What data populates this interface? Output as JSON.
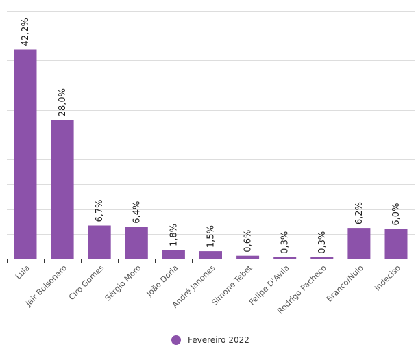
{
  "chart_data": {
    "type": "bar",
    "categories": [
      "Lula",
      "Jair Bolsonaro",
      "Ciro Gomes",
      "Sérgio Moro",
      "João Doria",
      "André Janones",
      "Simone Tebet",
      "Felipe D'Avila",
      "Rodrigo Pacheco",
      "Branco/Nulo",
      "Indeciso"
    ],
    "series": [
      {
        "name": "Fevereiro 2022",
        "values": [
          42.2,
          28.0,
          6.7,
          6.4,
          1.8,
          1.5,
          0.6,
          0.3,
          0.3,
          6.2,
          6.0
        ],
        "labels": [
          "42,2%",
          "28,0%",
          "6,7%",
          "6,4%",
          "1,8%",
          "1,5%",
          "0,6%",
          "0,3%",
          "0,3%",
          "6,2%",
          "6,0%"
        ],
        "color": "#8c52aa"
      }
    ],
    "ylim": [
      0,
      50
    ],
    "grid": true,
    "legend_position": "bottom"
  }
}
